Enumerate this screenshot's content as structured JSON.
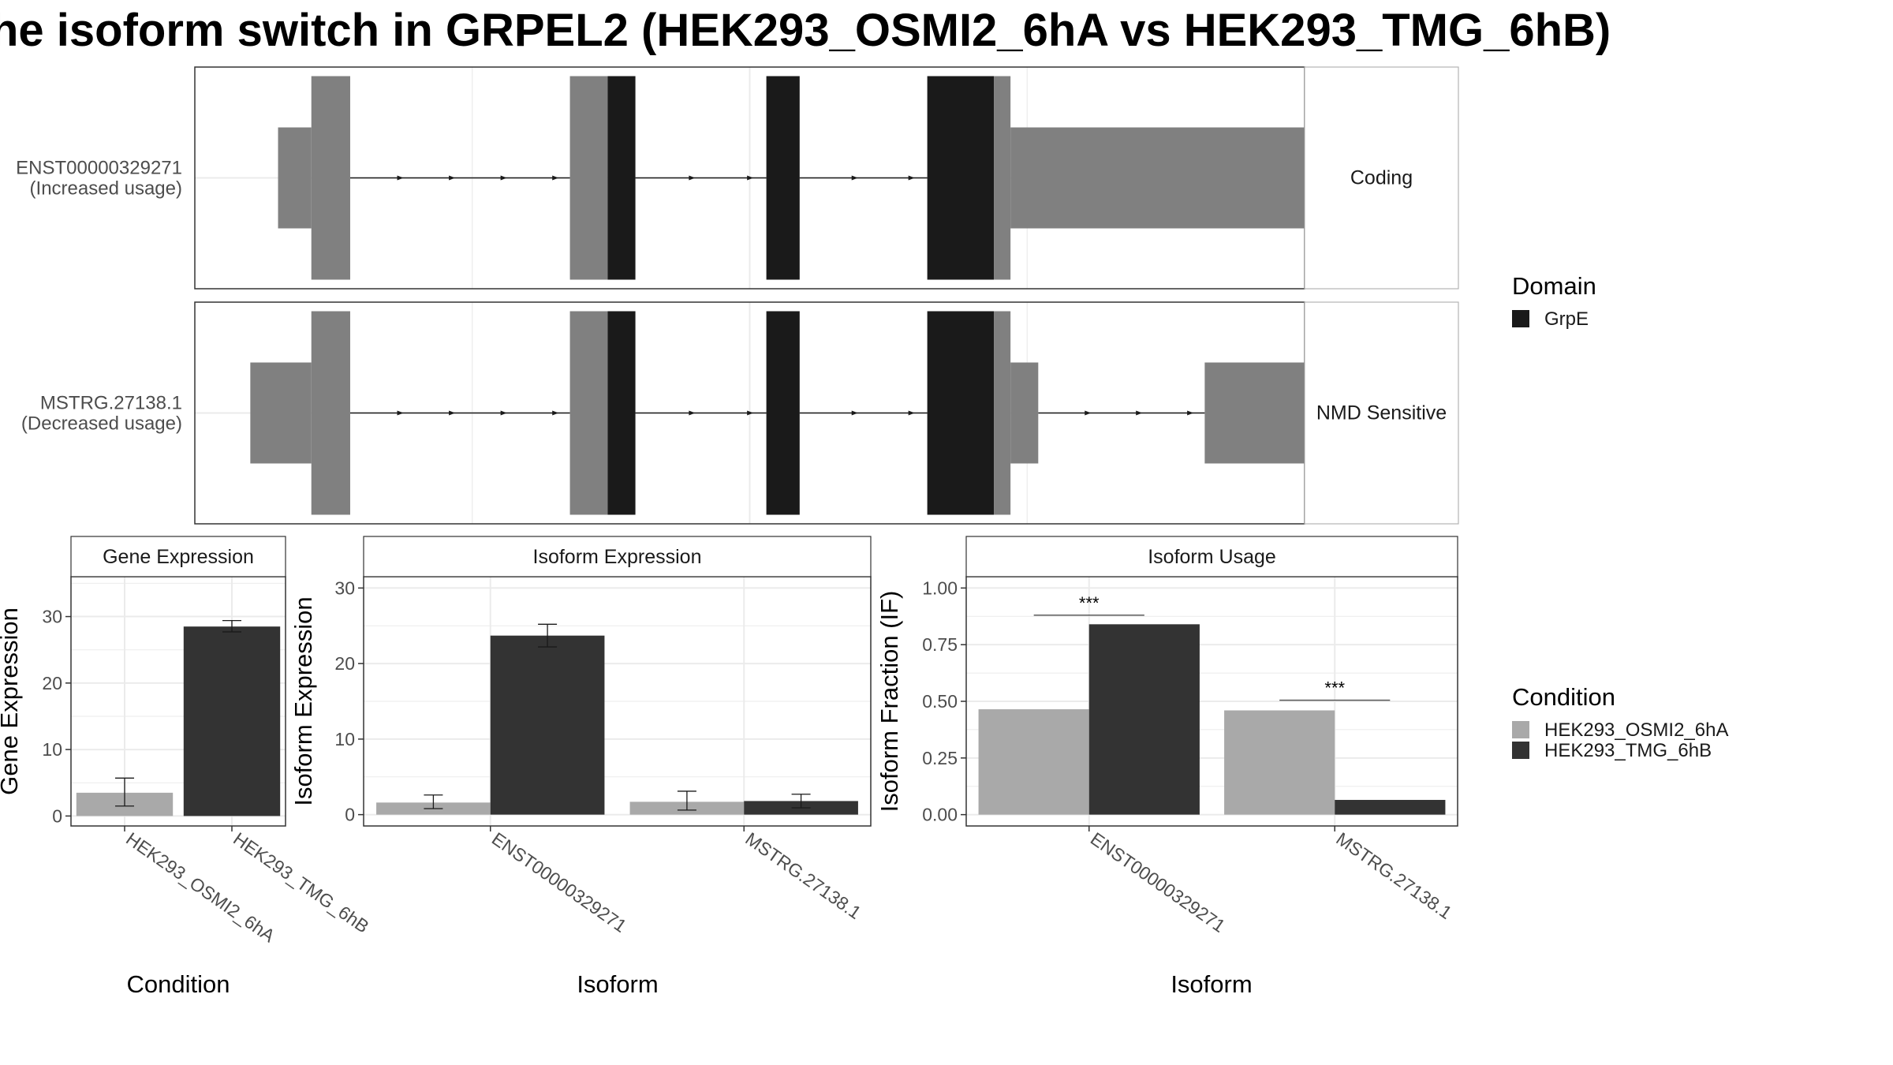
{
  "title": "he isoform switch in GRPEL2 (HEK293_OSMI2_6hA vs HEK293_TMG_6hB)",
  "colors": {
    "domain_fill": "#1a1a1a",
    "utr_fill": "#808080",
    "condition_a": "#a9a9a9",
    "condition_b": "#333333",
    "grid": "#ebebeb",
    "panel_border": "#333333",
    "strip_border": "#b3b3b3"
  },
  "legends": {
    "domain": {
      "title": "Domain",
      "items": [
        {
          "label": "GrpE",
          "color": "#1a1a1a"
        }
      ]
    },
    "condition": {
      "title": "Condition",
      "items": [
        {
          "label": "HEK293_OSMI2_6hA",
          "color": "#a9a9a9"
        },
        {
          "label": "HEK293_TMG_6hB",
          "color": "#333333"
        }
      ]
    }
  },
  "chart_data": [
    {
      "type": "gene-structure",
      "coordinate_range": [
        0,
        1000
      ],
      "legend_title": "Domain",
      "transcripts": [
        {
          "id": "ENST00000329271",
          "usage_label": "(Increased usage)",
          "strip_label": "Coding",
          "exons": [
            [
              75,
              105
            ],
            [
              105,
              140
            ],
            [
              338,
              372
            ],
            [
              372,
              397
            ],
            [
              515,
              545
            ],
            [
              660,
              720
            ],
            [
              720,
              735
            ],
            [
              735,
              1010
            ]
          ],
          "thick_exons": [
            [
              105,
              140
            ],
            [
              338,
              372
            ],
            [
              372,
              397
            ],
            [
              515,
              545
            ],
            [
              660,
              720
            ],
            [
              720,
              735
            ]
          ],
          "domains": [
            [
              372,
              397
            ],
            [
              515,
              545
            ],
            [
              660,
              720
            ]
          ]
        },
        {
          "id": "MSTRG.27138.1",
          "usage_label": "(Decreased usage)",
          "strip_label": "NMD Sensitive",
          "exons": [
            [
              50,
              105
            ],
            [
              105,
              140
            ],
            [
              338,
              372
            ],
            [
              372,
              397
            ],
            [
              515,
              545
            ],
            [
              660,
              720
            ],
            [
              720,
              735
            ],
            [
              735,
              760
            ],
            [
              910,
              1010
            ]
          ],
          "thick_exons": [
            [
              105,
              140
            ],
            [
              338,
              372
            ],
            [
              372,
              397
            ],
            [
              515,
              545
            ],
            [
              660,
              720
            ],
            [
              720,
              735
            ]
          ],
          "domains": [
            [
              372,
              397
            ],
            [
              515,
              545
            ],
            [
              660,
              720
            ]
          ]
        }
      ]
    },
    {
      "type": "bar",
      "title": "Gene Expression",
      "xlabel": "Condition",
      "ylabel": "Gene Expression",
      "ylim": [
        -1.5,
        36
      ],
      "yticks": [
        0,
        10,
        20,
        30
      ],
      "categories": [
        "HEK293_OSMI2_6hA",
        "HEK293_TMG_6hB"
      ],
      "series": [
        {
          "values": [
            3.5,
            28.5
          ],
          "error_low": [
            1.5,
            27.7
          ],
          "error_high": [
            5.7,
            29.4
          ]
        }
      ],
      "color_by": "category",
      "grid": true
    },
    {
      "type": "bar",
      "title": "Isoform Expression",
      "xlabel": "Isoform",
      "ylabel": "Isoform Expression",
      "ylim": [
        -1.5,
        31.5
      ],
      "yticks": [
        0,
        10,
        20,
        30
      ],
      "categories": [
        "ENST00000329271",
        "MSTRG.27138.1"
      ],
      "series": [
        {
          "name": "HEK293_OSMI2_6hA",
          "values": [
            1.6,
            1.7
          ],
          "error_low": [
            0.8,
            0.6
          ],
          "error_high": [
            2.6,
            3.1
          ]
        },
        {
          "name": "HEK293_TMG_6hB",
          "values": [
            23.7,
            1.8
          ],
          "error_low": [
            22.2,
            0.9
          ],
          "error_high": [
            25.2,
            2.7
          ]
        }
      ],
      "grid": true
    },
    {
      "type": "bar",
      "title": "Isoform Usage",
      "xlabel": "Isoform",
      "ylabel": "Isoform Fraction (IF)",
      "ylim": [
        -0.05,
        1.05
      ],
      "yticks": [
        "0.00",
        "0.25",
        "0.50",
        "0.75",
        "1.00"
      ],
      "categories": [
        "ENST00000329271",
        "MSTRG.27138.1"
      ],
      "series": [
        {
          "name": "HEK293_OSMI2_6hA",
          "values": [
            0.465,
            0.46
          ]
        },
        {
          "name": "HEK293_TMG_6hB",
          "values": [
            0.84,
            0.065
          ]
        }
      ],
      "annotations": [
        {
          "category": "ENST00000329271",
          "text": "***",
          "y": 0.88
        },
        {
          "category": "MSTRG.27138.1",
          "text": "***",
          "y": 0.505
        }
      ],
      "grid": true
    }
  ]
}
